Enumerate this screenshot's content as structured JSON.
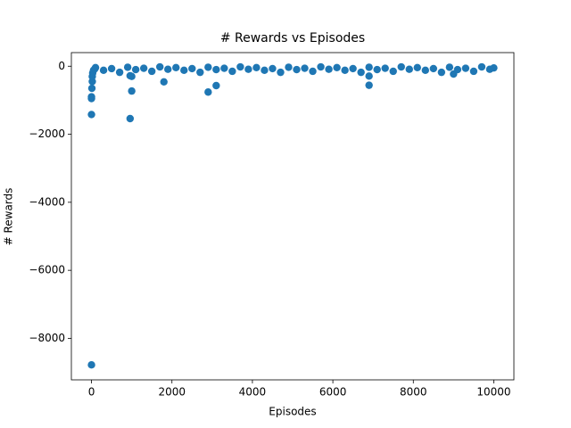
{
  "chart_data": {
    "type": "scatter",
    "title": "# Rewards vs Episodes",
    "x_label": "Episodes",
    "y_label": "# Rewards",
    "color": "#1f77b4",
    "x": [
      0,
      0,
      0,
      0,
      10,
      20,
      20,
      30,
      50,
      80,
      960,
      1000,
      960,
      1000,
      1800,
      2900,
      3100,
      6900,
      6900,
      9000,
      100,
      300,
      500,
      700,
      900,
      1100,
      1300,
      1500,
      1700,
      1900,
      2100,
      2300,
      2500,
      2700,
      2900,
      3100,
      3300,
      3500,
      3700,
      3900,
      4100,
      4300,
      4500,
      4700,
      4900,
      5100,
      5300,
      5500,
      5700,
      5900,
      6100,
      6300,
      6500,
      6700,
      6900,
      7100,
      7300,
      7500,
      7700,
      7900,
      8100,
      8300,
      8500,
      8700,
      8900,
      9100,
      9300,
      9500,
      9700,
      9900,
      10000
    ],
    "values": [
      -8780,
      -1420,
      -900,
      -950,
      -650,
      -450,
      -300,
      -200,
      -120,
      -80,
      -1540,
      -730,
      -280,
      -300,
      -460,
      -760,
      -570,
      -560,
      -290,
      -230,
      -40,
      -120,
      -70,
      -180,
      -30,
      -100,
      -60,
      -150,
      -20,
      -90,
      -40,
      -120,
      -70,
      -180,
      -30,
      -100,
      -60,
      -150,
      -20,
      -90,
      -40,
      -120,
      -70,
      -180,
      -30,
      -100,
      -60,
      -150,
      -20,
      -90,
      -40,
      -120,
      -70,
      -180,
      -30,
      -100,
      -60,
      -150,
      -20,
      -90,
      -40,
      -120,
      -70,
      -180,
      -30,
      -100,
      -60,
      -150,
      -20,
      -90,
      -50
    ],
    "xlim": [
      -500,
      10500
    ],
    "ylim": [
      -9220,
      400
    ],
    "xticks": [
      0,
      2000,
      4000,
      6000,
      8000,
      10000
    ],
    "yticks": [
      {
        "value": -8000,
        "label": "−8000"
      },
      {
        "value": -6000,
        "label": "−6000"
      },
      {
        "value": -4000,
        "label": "−4000"
      },
      {
        "value": -2000,
        "label": "−2000"
      },
      0
    ]
  }
}
